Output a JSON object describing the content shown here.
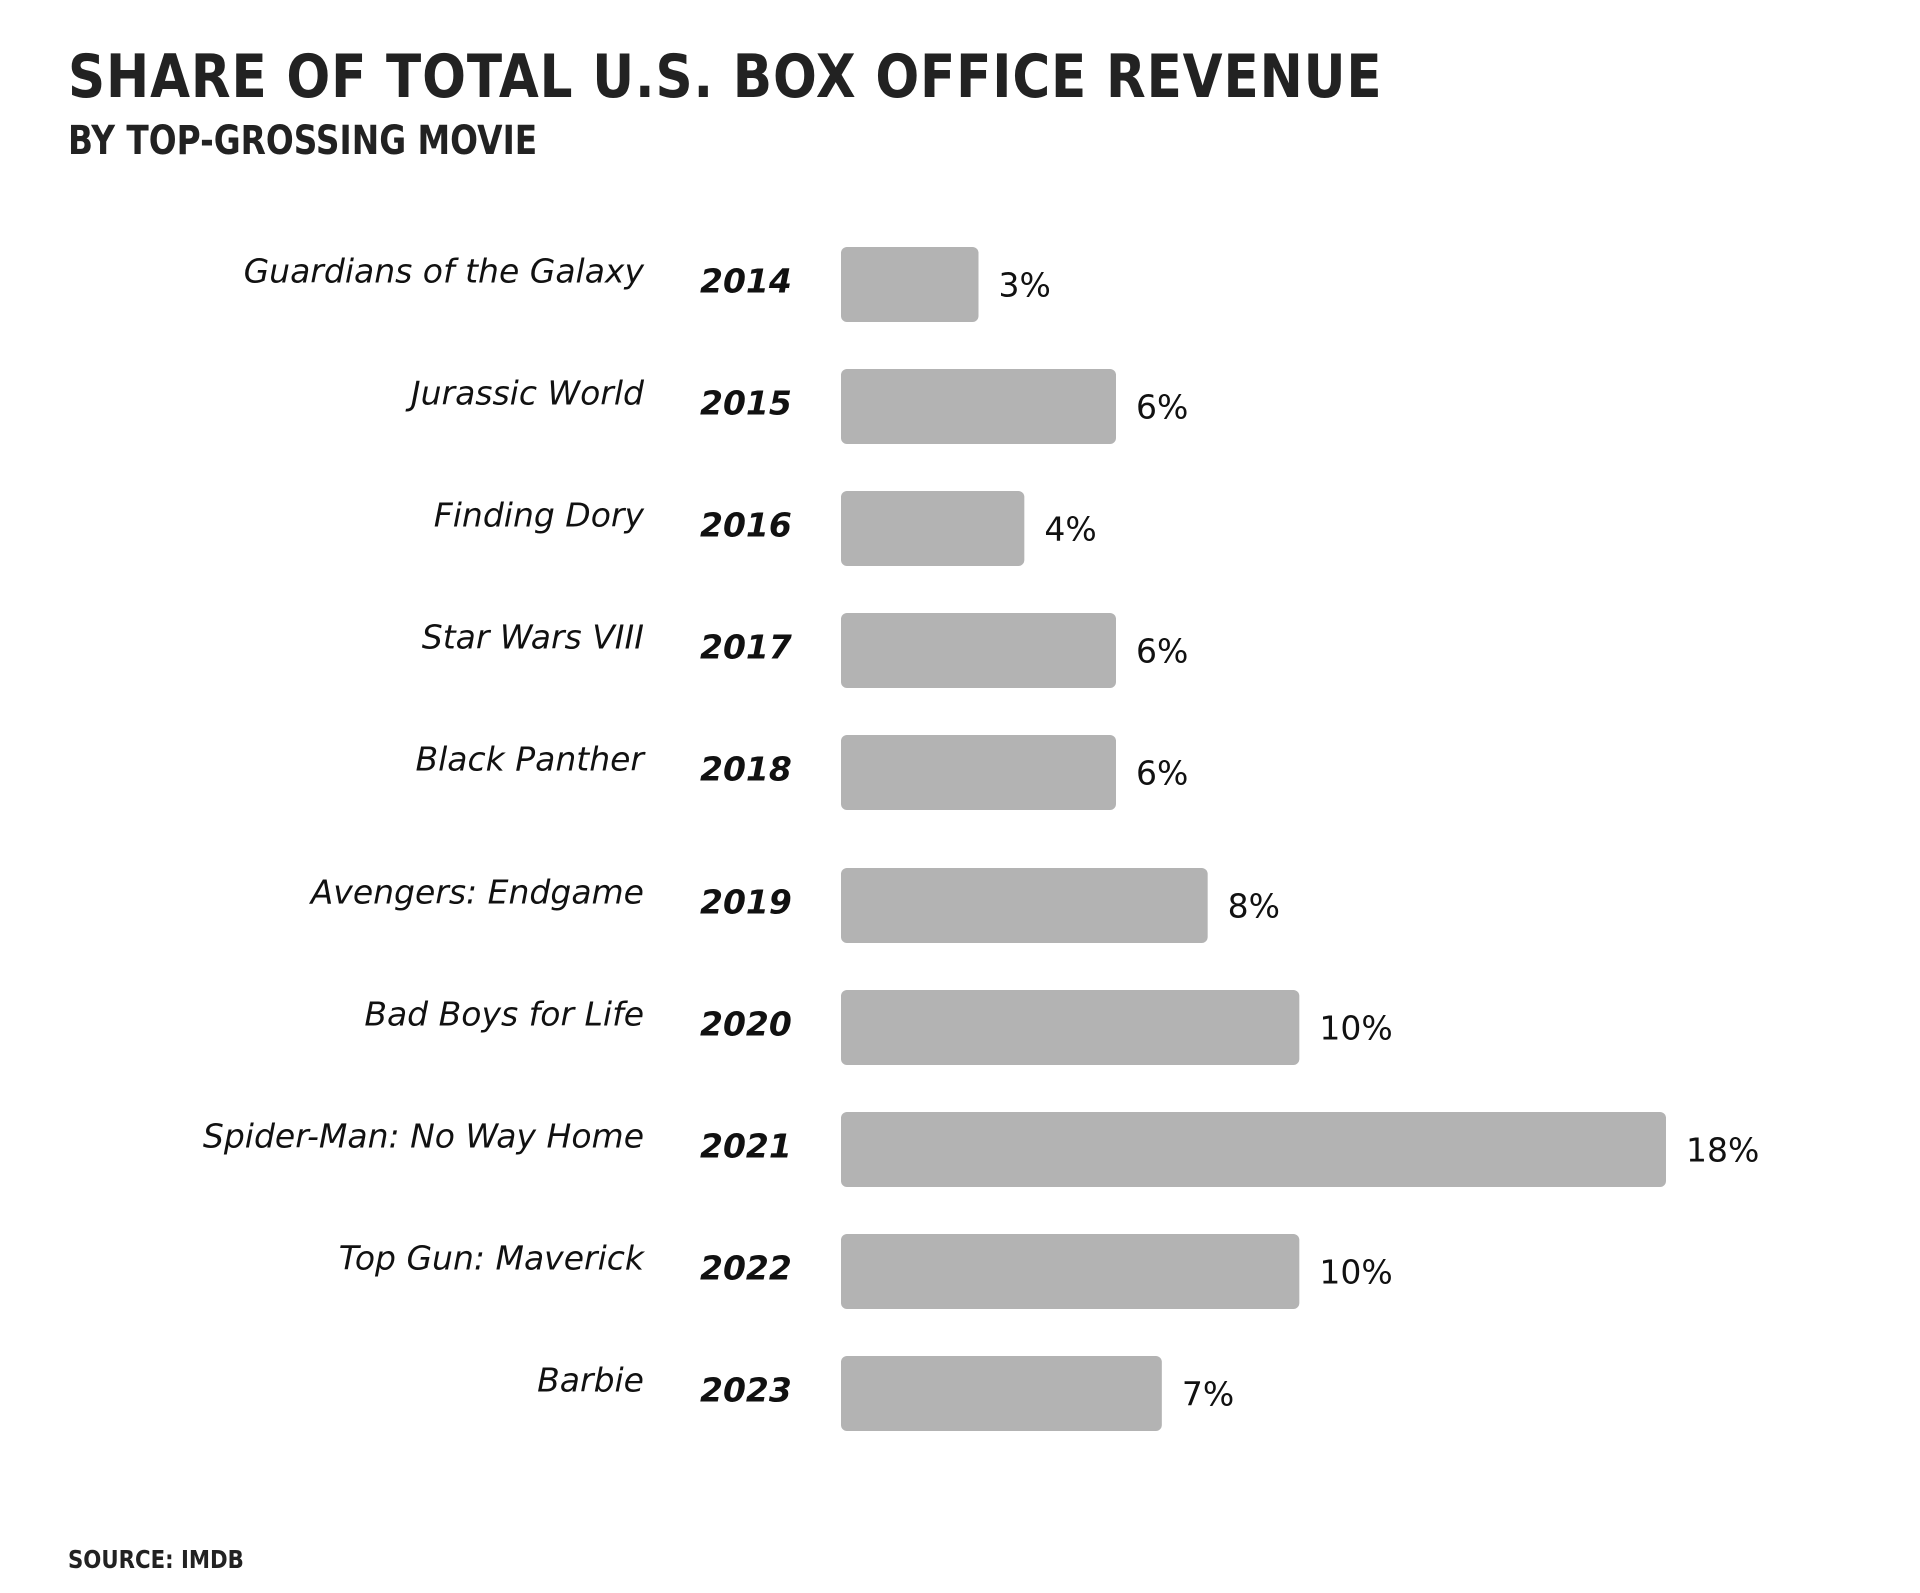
{
  "chart_data": {
    "type": "bar",
    "orientation": "horizontal",
    "title": "Share of Total U.S. Box Office Revenue",
    "subtitle": "By Top-Grossing Movie",
    "source": "Source: IMDB",
    "xlabel": "",
    "ylabel": "",
    "unit": "%",
    "grid": false,
    "bar_color": "#b3b3b3",
    "categories": [
      "Guardians of the Galaxy",
      "Jurassic World",
      "Finding Dory",
      "Star Wars VIII",
      "Black Panther",
      "Avengers: Endgame",
      "Bad Boys for Life",
      "Spider-Man: No Way Home",
      "Top Gun: Maverick",
      "Barbie"
    ],
    "years": [
      "2014",
      "2015",
      "2016",
      "2017",
      "2018",
      "2019",
      "2020",
      "2021",
      "2022",
      "2023"
    ],
    "values": [
      3,
      6,
      4,
      6,
      6,
      8,
      10,
      18,
      10,
      7
    ],
    "data_labels": [
      "3%",
      "6%",
      "4%",
      "6%",
      "6%",
      "8%",
      "10%",
      "18%",
      "10%",
      "7%"
    ],
    "xlim": [
      0,
      18
    ]
  }
}
